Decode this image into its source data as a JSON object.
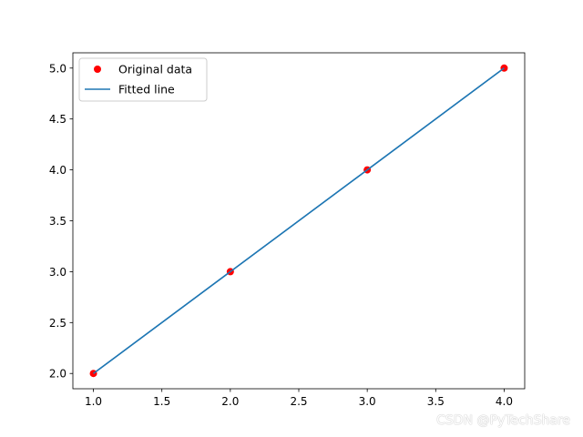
{
  "chart_data": {
    "type": "line",
    "title": "",
    "xlabel": "",
    "ylabel": "",
    "xlim": [
      0.85,
      4.15
    ],
    "ylim": [
      1.85,
      5.15
    ],
    "x_ticks": [
      1.0,
      1.5,
      2.0,
      2.5,
      3.0,
      3.5,
      4.0
    ],
    "y_ticks": [
      2.0,
      2.5,
      3.0,
      3.5,
      4.0,
      4.5,
      5.0
    ],
    "x_tick_labels": [
      "1.0",
      "1.5",
      "2.0",
      "2.5",
      "3.0",
      "3.5",
      "4.0"
    ],
    "y_tick_labels": [
      "2.0",
      "2.5",
      "3.0",
      "3.5",
      "4.0",
      "4.5",
      "5.0"
    ],
    "grid": false,
    "legend_position": "top-left",
    "series": [
      {
        "name": "Original data",
        "kind": "scatter",
        "color": "#ff0000",
        "x": [
          1,
          2,
          3,
          4
        ],
        "y": [
          2,
          3,
          4,
          5
        ]
      },
      {
        "name": "Fitted line",
        "kind": "line",
        "color": "#1f77b4",
        "x": [
          1,
          2,
          3,
          4
        ],
        "y": [
          2,
          3,
          4,
          5
        ]
      }
    ]
  },
  "watermark": "CSDN @PyTechShare"
}
